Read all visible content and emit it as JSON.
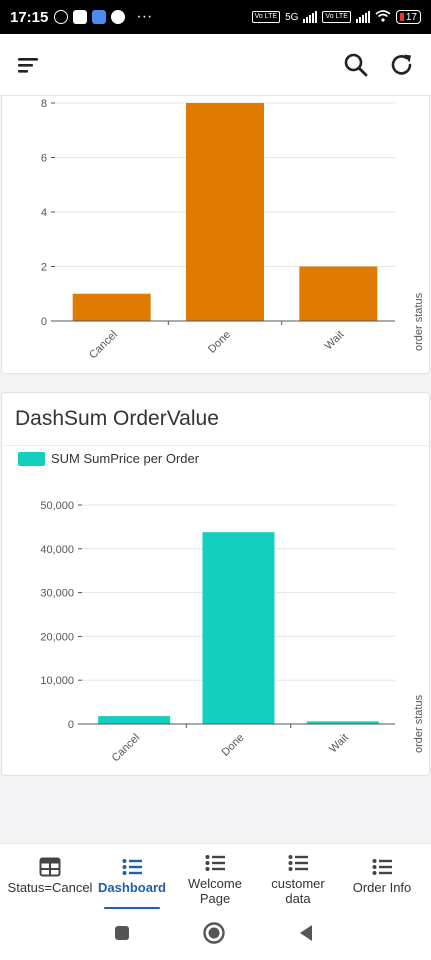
{
  "status_bar": {
    "time": "17:15",
    "network": "5G",
    "battery": "17",
    "more": "···"
  },
  "app_bar": {
    "menu_icon": "menu-icon",
    "search_icon": "search-icon",
    "refresh_icon": "refresh-icon"
  },
  "card1": {
    "chart_data": {
      "type": "bar",
      "categories": [
        "Cancel",
        "Done",
        "Wait"
      ],
      "values": [
        1,
        8,
        2
      ],
      "yticks": [
        "0",
        "2",
        "4",
        "6",
        "8"
      ],
      "ylim": [
        0,
        8
      ],
      "xlabel": "order status",
      "color": "#df7b00"
    }
  },
  "card2": {
    "title": "DashSum OrderValue",
    "legend_label": "SUM SumPrice per Order",
    "chart_data": {
      "type": "bar",
      "categories": [
        "Cancel",
        "Done",
        "Wait"
      ],
      "series": [
        {
          "name": "SUM SumPrice per Order",
          "values": [
            1800,
            43800,
            600
          ]
        }
      ],
      "yticks": [
        "0",
        "10,000",
        "20,000",
        "30,000",
        "40,000",
        "50,000"
      ],
      "ylim": [
        0,
        50000
      ],
      "xlabel": "order status",
      "color": "#12cfc0"
    }
  },
  "bottom_nav": {
    "items": [
      {
        "label": "Status=Cancel",
        "icon": "table-icon"
      },
      {
        "label": "Dashboard",
        "icon": "list-icon"
      },
      {
        "label": "Welcome Page",
        "icon": "list-icon"
      },
      {
        "label": "customer data",
        "icon": "list-icon"
      },
      {
        "label": "Order Info",
        "icon": "list-icon"
      }
    ],
    "active_index": 1,
    "active_color": "#1f5fa6"
  }
}
